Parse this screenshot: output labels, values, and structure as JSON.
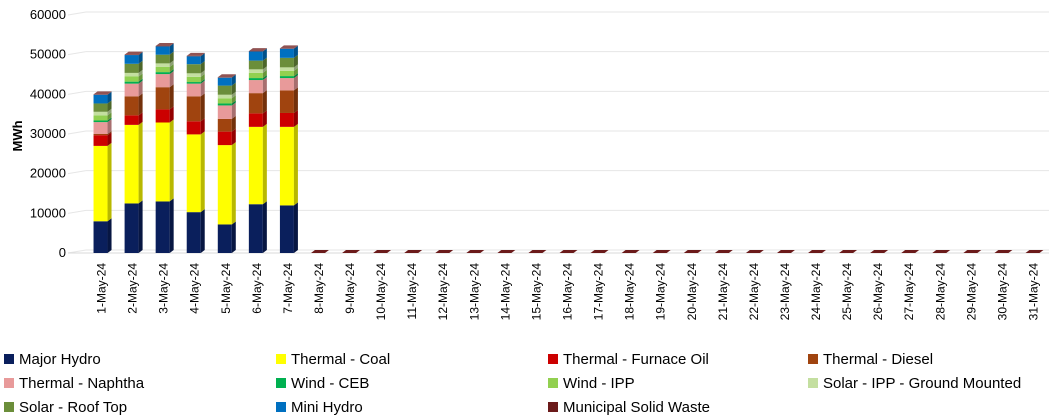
{
  "chart_data": {
    "type": "bar",
    "stacked": true,
    "three_d": true,
    "ylabel": "MWh",
    "xlabel": "",
    "ylim": [
      0,
      60000
    ],
    "yticks": [
      "0",
      "10000",
      "20000",
      "30000",
      "40000",
      "50000",
      "60000"
    ],
    "grid": true,
    "legend_position": "bottom",
    "categories": [
      "1-May-24",
      "2-May-24",
      "3-May-24",
      "4-May-24",
      "5-May-24",
      "6-May-24",
      "7-May-24",
      "8-May-24",
      "9-May-24",
      "10-May-24",
      "11-May-24",
      "12-May-24",
      "13-May-24",
      "14-May-24",
      "15-May-24",
      "16-May-24",
      "17-May-24",
      "18-May-24",
      "19-May-24",
      "20-May-24",
      "21-May-24",
      "22-May-24",
      "23-May-24",
      "24-May-24",
      "25-May-24",
      "26-May-24",
      "27-May-24",
      "28-May-24",
      "29-May-24",
      "30-May-24",
      "31-May-24"
    ],
    "series": [
      {
        "name": "Major Hydro",
        "color": "#0a1f5c",
        "values": [
          8000,
          12500,
          13000,
          10300,
          7200,
          12300,
          12000,
          0,
          0,
          0,
          0,
          0,
          0,
          0,
          0,
          0,
          0,
          0,
          0,
          0,
          0,
          0,
          0,
          0,
          0,
          0,
          0,
          0,
          0,
          0,
          0
        ]
      },
      {
        "name": "Thermal - Coal",
        "color": "#ffff00",
        "values": [
          19000,
          19800,
          19900,
          19600,
          20000,
          19500,
          19800,
          0,
          0,
          0,
          0,
          0,
          0,
          0,
          0,
          0,
          0,
          0,
          0,
          0,
          0,
          0,
          0,
          0,
          0,
          0,
          0,
          0,
          0,
          0,
          0
        ]
      },
      {
        "name": "Thermal - Furnace Oil",
        "color": "#cc0000",
        "values": [
          2700,
          2400,
          3300,
          3300,
          3400,
          3400,
          3500,
          0,
          0,
          0,
          0,
          0,
          0,
          0,
          0,
          0,
          0,
          0,
          0,
          0,
          0,
          0,
          0,
          0,
          0,
          0,
          0,
          0,
          0,
          0,
          0
        ]
      },
      {
        "name": "Thermal - Diesel",
        "color": "#a0440f",
        "values": [
          300,
          4800,
          5600,
          6300,
          3200,
          5100,
          5700,
          0,
          0,
          0,
          0,
          0,
          0,
          0,
          0,
          0,
          0,
          0,
          0,
          0,
          0,
          0,
          0,
          0,
          0,
          0,
          0,
          0,
          0,
          0,
          0
        ]
      },
      {
        "name": "Thermal - Naphtha",
        "color": "#e89a9a",
        "values": [
          3000,
          3200,
          3300,
          3200,
          3400,
          3300,
          3100,
          0,
          0,
          0,
          0,
          0,
          0,
          0,
          0,
          0,
          0,
          0,
          0,
          0,
          0,
          0,
          0,
          0,
          0,
          0,
          0,
          0,
          0,
          0,
          0
        ]
      },
      {
        "name": "Wind - CEB",
        "color": "#00b050",
        "values": [
          400,
          500,
          500,
          400,
          500,
          500,
          500,
          0,
          0,
          0,
          0,
          0,
          0,
          0,
          0,
          0,
          0,
          0,
          0,
          0,
          0,
          0,
          0,
          0,
          0,
          0,
          0,
          0,
          0,
          0,
          0
        ]
      },
      {
        "name": "Wind - IPP",
        "color": "#92d050",
        "values": [
          1300,
          1300,
          1300,
          1300,
          1300,
          1300,
          1300,
          0,
          0,
          0,
          0,
          0,
          0,
          0,
          0,
          0,
          0,
          0,
          0,
          0,
          0,
          0,
          0,
          0,
          0,
          0,
          0,
          0,
          0,
          0,
          0
        ]
      },
      {
        "name": "Solar - IPP - Ground Mounted",
        "color": "#c4dfa0",
        "values": [
          900,
          900,
          900,
          900,
          900,
          900,
          900,
          0,
          0,
          0,
          0,
          0,
          0,
          0,
          0,
          0,
          0,
          0,
          0,
          0,
          0,
          0,
          0,
          0,
          0,
          0,
          0,
          0,
          0,
          0,
          0
        ]
      },
      {
        "name": "Solar - Roof Top",
        "color": "#6b8e3a",
        "values": [
          2100,
          2300,
          2200,
          2300,
          2300,
          2200,
          2400,
          0,
          0,
          0,
          0,
          0,
          0,
          0,
          0,
          0,
          0,
          0,
          0,
          0,
          0,
          0,
          0,
          0,
          0,
          0,
          0,
          0,
          0,
          0,
          0
        ]
      },
      {
        "name": "Mini Hydro",
        "color": "#0070c0",
        "values": [
          2200,
          2200,
          2100,
          2000,
          2000,
          2300,
          2300,
          0,
          0,
          0,
          0,
          0,
          0,
          0,
          0,
          0,
          0,
          0,
          0,
          0,
          0,
          0,
          0,
          0,
          0,
          0,
          0,
          0,
          0,
          0,
          0
        ]
      },
      {
        "name": "Municipal Solid Waste",
        "color": "#6b1a1a",
        "values": [
          100,
          100,
          100,
          100,
          100,
          100,
          100,
          0,
          0,
          0,
          0,
          0,
          0,
          0,
          0,
          0,
          0,
          0,
          0,
          0,
          0,
          0,
          0,
          0,
          0,
          0,
          0,
          0,
          0,
          0,
          0
        ]
      }
    ]
  }
}
